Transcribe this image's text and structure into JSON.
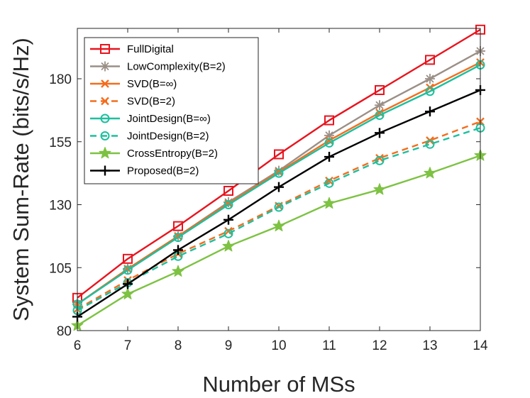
{
  "chart_data": {
    "type": "line",
    "title": "",
    "xlabel": "Number of MSs",
    "ylabel": "System Sum-Rate (bits/s/Hz)",
    "x": [
      6,
      7,
      8,
      9,
      10,
      11,
      12,
      13,
      14
    ],
    "xlim": [
      6,
      14
    ],
    "ylim": [
      80,
      200
    ],
    "xticks": [
      6,
      7,
      8,
      9,
      10,
      11,
      12,
      13,
      14
    ],
    "yticks": [
      80,
      105,
      130,
      155,
      180
    ],
    "grid": false,
    "legend_position": "top-left",
    "series": [
      {
        "name": "FullDigital",
        "color": "#e8141e",
        "dash": "solid",
        "marker": "square",
        "values": [
          93,
          108.5,
          121.5,
          135.5,
          150,
          163.5,
          175.5,
          187.5,
          199.5
        ]
      },
      {
        "name": "LowComplexity(B=2)",
        "color": "#9a8f86",
        "dash": "solid",
        "marker": "asterisk",
        "values": [
          90.5,
          104.5,
          117.5,
          131,
          143.5,
          157.5,
          169.5,
          180,
          191
        ]
      },
      {
        "name": "SVD(B=∞)",
        "color": "#f46d1d",
        "dash": "solid",
        "marker": "x",
        "values": [
          90.5,
          104.5,
          117.5,
          130.5,
          143,
          155.5,
          166.5,
          176.5,
          186.5
        ]
      },
      {
        "name": "SVD(B=2)",
        "color": "#f46d1d",
        "dash": "dashed",
        "marker": "x",
        "values": [
          88.5,
          100,
          110.5,
          119.5,
          129.5,
          139.5,
          148.5,
          155.5,
          163
        ]
      },
      {
        "name": "JointDesign(B=∞)",
        "color": "#1dbf9e",
        "dash": "solid",
        "marker": "circle",
        "values": [
          90.5,
          104,
          117,
          130,
          142.5,
          154.5,
          165.5,
          175,
          185.5
        ]
      },
      {
        "name": "JointDesign(B=2)",
        "color": "#1dbf9e",
        "dash": "dashed",
        "marker": "circle",
        "values": [
          88,
          99,
          109.5,
          118.5,
          129,
          138.5,
          147.5,
          154,
          160.5
        ]
      },
      {
        "name": "CrossEntropy(B=2)",
        "color": "#7dc242",
        "dash": "solid",
        "marker": "star",
        "values": [
          82,
          94.5,
          103.5,
          113.5,
          121.5,
          130.5,
          136,
          142.5,
          149.5
        ]
      },
      {
        "name": "Proposed(B=2)",
        "color": "#000000",
        "dash": "solid",
        "marker": "plus",
        "values": [
          85.5,
          98.5,
          112,
          124,
          137,
          149,
          158.5,
          167,
          175.5
        ]
      }
    ]
  }
}
